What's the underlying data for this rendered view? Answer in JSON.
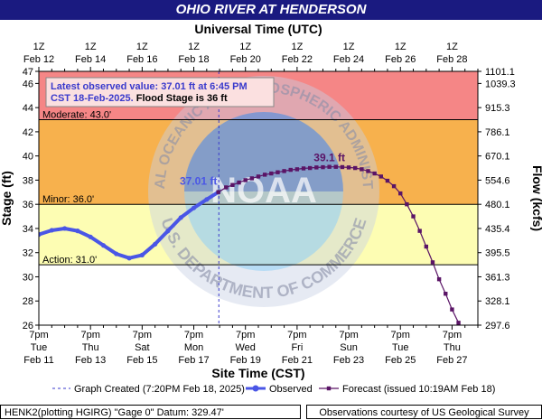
{
  "header": {
    "title": "OHIO RIVER AT HENDERSON"
  },
  "footer": {
    "left": "HENK2(plotting HGIRG) \"Gage 0\" Datum: 329.47'",
    "right": "Observations courtesy of US Geological Survey"
  },
  "colors": {
    "major": "#f58686",
    "moderate": "#f7b14d",
    "minor": "#fdfdb3",
    "action": "#fdfdb3",
    "observed": "#4a56e6",
    "forecast": "#5a1466",
    "title_bg": "#1a1a80",
    "grid_line": "#000000"
  },
  "chart_data": {
    "type": "line",
    "top_axis_title": "Universal Time (UTC)",
    "bottom_axis_title": "Site Time (CST)",
    "ylabel": "Stage (ft)",
    "y2label": "Flow (kcfs)",
    "ylim": [
      26,
      47
    ],
    "yticks": [
      26,
      28,
      30,
      32,
      34,
      36,
      38,
      40,
      42,
      44,
      46,
      47
    ],
    "y2ticks": [
      {
        "stage": 26,
        "label": "297.6"
      },
      {
        "stage": 28,
        "label": "328.1"
      },
      {
        "stage": 30,
        "label": "361.3"
      },
      {
        "stage": 32,
        "label": "395.5"
      },
      {
        "stage": 34,
        "label": "435.4"
      },
      {
        "stage": 36,
        "label": "480.1"
      },
      {
        "stage": 38,
        "label": "554.6"
      },
      {
        "stage": 40,
        "label": "670.1"
      },
      {
        "stage": 42,
        "label": "786.1"
      },
      {
        "stage": 44,
        "label": "915.3"
      },
      {
        "stage": 46,
        "label": "1039.3"
      },
      {
        "stage": 47,
        "label": "1101.1"
      }
    ],
    "x_unit": "days since 7pm CST Feb 11 (chart time)",
    "xlim": [
      0,
      17
    ],
    "bottom_ticks": [
      {
        "x": 0,
        "line1": "7pm",
        "line2": "Tue",
        "line3": "Feb 11"
      },
      {
        "x": 2,
        "line1": "7pm",
        "line2": "Thu",
        "line3": "Feb 13"
      },
      {
        "x": 4,
        "line1": "7pm",
        "line2": "Sat",
        "line3": "Feb 15"
      },
      {
        "x": 6,
        "line1": "7pm",
        "line2": "Mon",
        "line3": "Feb 17"
      },
      {
        "x": 8,
        "line1": "7pm",
        "line2": "Wed",
        "line3": "Feb 19"
      },
      {
        "x": 10,
        "line1": "7pm",
        "line2": "Fri",
        "line3": "Feb 21"
      },
      {
        "x": 12,
        "line1": "7pm",
        "line2": "Sun",
        "line3": "Feb 23"
      },
      {
        "x": 14,
        "line1": "7pm",
        "line2": "Tue",
        "line3": "Feb 25"
      },
      {
        "x": 16,
        "line1": "7pm",
        "line2": "Thu",
        "line3": "Feb 27"
      }
    ],
    "top_ticks": [
      {
        "x": 0,
        "line1": "1Z",
        "line2": "Feb 12"
      },
      {
        "x": 2,
        "line1": "1Z",
        "line2": "Feb 14"
      },
      {
        "x": 4,
        "line1": "1Z",
        "line2": "Feb 16"
      },
      {
        "x": 6,
        "line1": "1Z",
        "line2": "Feb 18"
      },
      {
        "x": 8,
        "line1": "1Z",
        "line2": "Feb 20"
      },
      {
        "x": 10,
        "line1": "1Z",
        "line2": "Feb 22"
      },
      {
        "x": 12,
        "line1": "1Z",
        "line2": "Feb 24"
      },
      {
        "x": 14,
        "line1": "1Z",
        "line2": "Feb 26"
      },
      {
        "x": 16,
        "line1": "1Z",
        "line2": "Feb 28"
      }
    ],
    "flood_categories": [
      {
        "name": "major",
        "label": "",
        "from": 44,
        "to": 47
      },
      {
        "name": "moderate",
        "label": "Moderate: 43.0'",
        "from": 43,
        "to": 44
      },
      {
        "name": "moderate_band",
        "label": "",
        "from": 36,
        "to": 43
      },
      {
        "name": "minor",
        "label": "Minor: 36.0'",
        "from": 31,
        "to": 36
      },
      {
        "name": "action",
        "label": "Action: 31.0'",
        "from": 31,
        "to": 31
      }
    ],
    "threshold_lines": [
      {
        "stage": 43.0,
        "label": "Moderate: 43.0'"
      },
      {
        "stage": 36.0,
        "label": "Minor: 36.0'"
      },
      {
        "stage": 31.0,
        "label": "Action: 31.0'"
      }
    ],
    "graph_created_x": 6.97,
    "observed": {
      "name": "Observed",
      "x": [
        0,
        0.5,
        1.0,
        1.5,
        2.0,
        2.5,
        3.0,
        3.5,
        4.0,
        4.5,
        5.0,
        5.5,
        6.0,
        6.5,
        6.95
      ],
      "y": [
        33.5,
        33.85,
        34.0,
        33.8,
        33.3,
        32.6,
        31.9,
        31.55,
        31.8,
        32.7,
        33.8,
        34.9,
        35.7,
        36.4,
        37.01
      ]
    },
    "forecast": {
      "name": "Forecast (issued 10:19AM Feb 18)",
      "x": [
        6.95,
        7.25,
        7.5,
        7.75,
        8.0,
        8.25,
        8.5,
        8.75,
        9.0,
        9.25,
        9.5,
        9.75,
        10.0,
        10.25,
        10.5,
        10.75,
        11.0,
        11.25,
        11.5,
        11.75,
        12.0,
        12.25,
        12.5,
        12.75,
        13.0,
        13.25,
        13.5,
        13.75,
        14.0,
        14.25,
        14.5,
        14.75,
        15.0,
        15.25,
        15.5,
        15.75,
        16.0,
        16.25
      ],
      "y": [
        37.01,
        37.4,
        37.6,
        37.8,
        38.0,
        38.15,
        38.3,
        38.45,
        38.55,
        38.65,
        38.75,
        38.85,
        38.9,
        38.97,
        39.0,
        39.05,
        39.07,
        39.1,
        39.1,
        39.08,
        39.05,
        39.0,
        38.9,
        38.75,
        38.55,
        38.3,
        37.95,
        37.5,
        36.9,
        36.0,
        35.0,
        33.8,
        32.5,
        31.2,
        29.8,
        28.6,
        27.3,
        26.2
      ]
    },
    "annotations": {
      "latest_label": "37.01 ft",
      "crest_label": "39.1 ft",
      "crest_x": 11.25,
      "crest_y": 39.1,
      "info_line1": "Latest observed value: 37.01 ft at 6:45 PM",
      "info_line2_blue": "CST 18-Feb-2025.",
      "info_line2_black": " Flood Stage is 36 ft"
    },
    "watermark_lines": [
      "NATIONAL OCEANIC AND ATMOSPHERIC ADMINISTRATION",
      "NOAA",
      "U.S. DEPARTMENT OF COMMERCE"
    ],
    "legend": {
      "graph_created": "Graph Created (7:20PM Feb 18, 2025)",
      "observed": "Observed",
      "forecast": "Forecast (issued 10:19AM Feb 18)"
    },
    "legend_position": "bottom"
  }
}
